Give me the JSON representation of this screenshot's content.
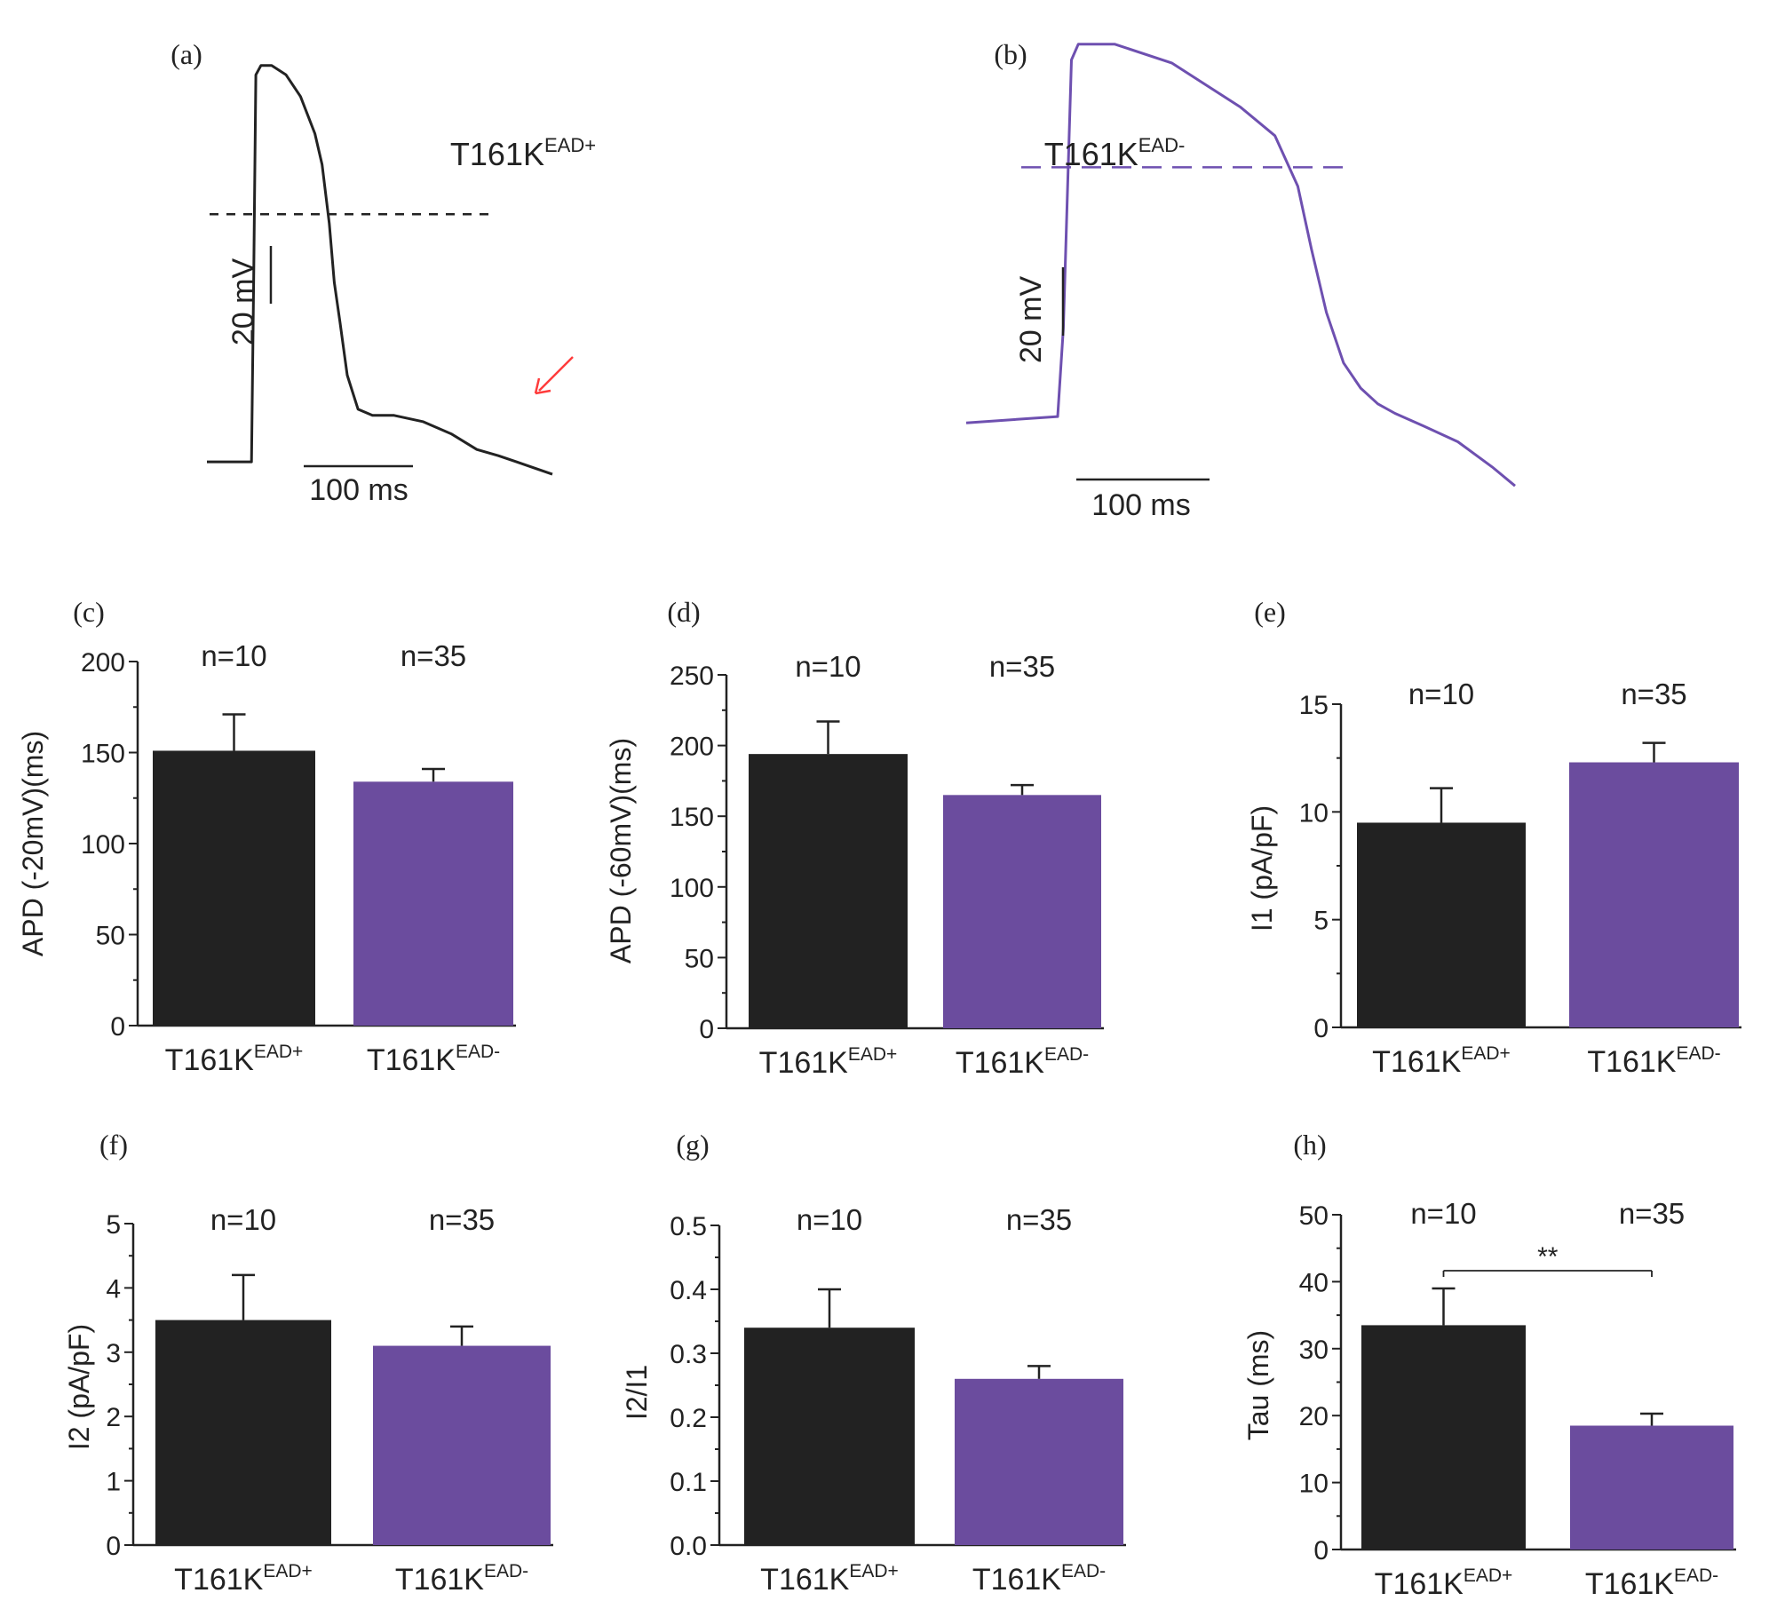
{
  "colors": {
    "black": "#222222",
    "purple": "#6b4c9e",
    "trace_purple": "#6e50b0",
    "arrow": "#ff3b3b"
  },
  "chart_data": [
    {
      "type": "line",
      "panel": "(a)",
      "group": {
        "base": "T161K",
        "sup": "EAD+"
      },
      "title": "",
      "x": [
        0,
        62,
        65,
        68,
        75,
        90,
        110,
        130,
        150,
        160,
        170,
        177,
        185,
        195,
        210,
        230,
        260,
        300,
        340,
        375,
        405,
        430,
        455,
        480
      ],
      "y": [
        0,
        0,
        60,
        125,
        128,
        128,
        125,
        118,
        106,
        96,
        77,
        58,
        45,
        28,
        17,
        15,
        15,
        13,
        9,
        4,
        2,
        0,
        -2,
        -4
      ],
      "ylim": [
        -10,
        140
      ],
      "xlim": [
        0,
        480
      ],
      "dashed_level": 80,
      "scale_bars": {
        "voltage": "20 mV",
        "time": "100 ms"
      },
      "annotation": "arrow"
    },
    {
      "type": "line",
      "panel": "(b)",
      "group": {
        "base": "T161K",
        "sup": "EAD-"
      },
      "title": "",
      "x": [
        0,
        80,
        85,
        92,
        98,
        130,
        180,
        240,
        270,
        290,
        302,
        315,
        330,
        345,
        360,
        375,
        400,
        430,
        460,
        480
      ],
      "y": [
        0,
        2,
        30,
        115,
        120,
        120,
        114,
        100,
        91,
        75,
        55,
        35,
        19,
        11,
        6,
        3,
        -1,
        -6,
        -14,
        -20
      ],
      "ylim": [
        -25,
        125
      ],
      "xlim": [
        0,
        480
      ],
      "dashed_level": 81,
      "scale_bars": {
        "voltage": "20 mV",
        "time": "100 ms"
      }
    },
    {
      "type": "bar",
      "panel": "(c)",
      "ylabel": "APD (-20mV)(ms)",
      "ylim": [
        0,
        200
      ],
      "yticks": [
        0,
        50,
        100,
        150,
        200
      ],
      "categories": [
        {
          "base": "T161K",
          "sup": "EAD+"
        },
        {
          "base": "T161K",
          "sup": "EAD-"
        }
      ],
      "values": [
        151,
        134
      ],
      "errors": [
        20,
        7
      ],
      "n_labels": [
        "n=10",
        "n=35"
      ]
    },
    {
      "type": "bar",
      "panel": "(d)",
      "ylabel": "APD (-60mV)(ms)",
      "ylim": [
        0,
        250
      ],
      "yticks": [
        0,
        50,
        100,
        150,
        200,
        250
      ],
      "categories": [
        {
          "base": "T161K",
          "sup": "EAD+"
        },
        {
          "base": "T161K",
          "sup": "EAD-"
        }
      ],
      "values": [
        194,
        165
      ],
      "errors": [
        23,
        7
      ],
      "n_labels": [
        "n=10",
        "n=35"
      ]
    },
    {
      "type": "bar",
      "panel": "(e)",
      "ylabel": "I1 (pA/pF)",
      "ylim": [
        0,
        15
      ],
      "yticks": [
        0,
        5,
        10,
        15
      ],
      "categories": [
        {
          "base": "T161K",
          "sup": "EAD+"
        },
        {
          "base": "T161K",
          "sup": "EAD-"
        }
      ],
      "values": [
        9.5,
        12.3
      ],
      "errors": [
        1.6,
        0.9
      ],
      "n_labels": [
        "n=10",
        "n=35"
      ]
    },
    {
      "type": "bar",
      "panel": "(f)",
      "ylabel": "I2 (pA/pF)",
      "ylim": [
        0,
        5
      ],
      "yticks": [
        0,
        1,
        2,
        3,
        4,
        5
      ],
      "categories": [
        {
          "base": "T161K",
          "sup": "EAD+"
        },
        {
          "base": "T161K",
          "sup": "EAD-"
        }
      ],
      "values": [
        3.5,
        3.1
      ],
      "errors": [
        0.7,
        0.3
      ],
      "n_labels": [
        "n=10",
        "n=35"
      ]
    },
    {
      "type": "bar",
      "panel": "(g)",
      "ylabel": "I2/I1",
      "ylim": [
        0,
        0.5
      ],
      "yticks": [
        "0.0",
        "0.1",
        "0.2",
        "0.3",
        "0.4",
        "0.5"
      ],
      "categories": [
        {
          "base": "T161K",
          "sup": "EAD+"
        },
        {
          "base": "T161K",
          "sup": "EAD-"
        }
      ],
      "values": [
        0.34,
        0.26
      ],
      "errors": [
        0.06,
        0.02
      ],
      "n_labels": [
        "n=10",
        "n=35"
      ]
    },
    {
      "type": "bar",
      "panel": "(h)",
      "ylabel": "Tau (ms)",
      "ylim": [
        0,
        50
      ],
      "yticks": [
        0,
        10,
        20,
        30,
        40,
        50
      ],
      "categories": [
        {
          "base": "T161K",
          "sup": "EAD+"
        },
        {
          "base": "T161K",
          "sup": "EAD-"
        }
      ],
      "values": [
        33.5,
        18.5
      ],
      "errors": [
        5.5,
        1.8
      ],
      "n_labels": [
        "n=10",
        "n=35"
      ],
      "significance": "**"
    }
  ]
}
